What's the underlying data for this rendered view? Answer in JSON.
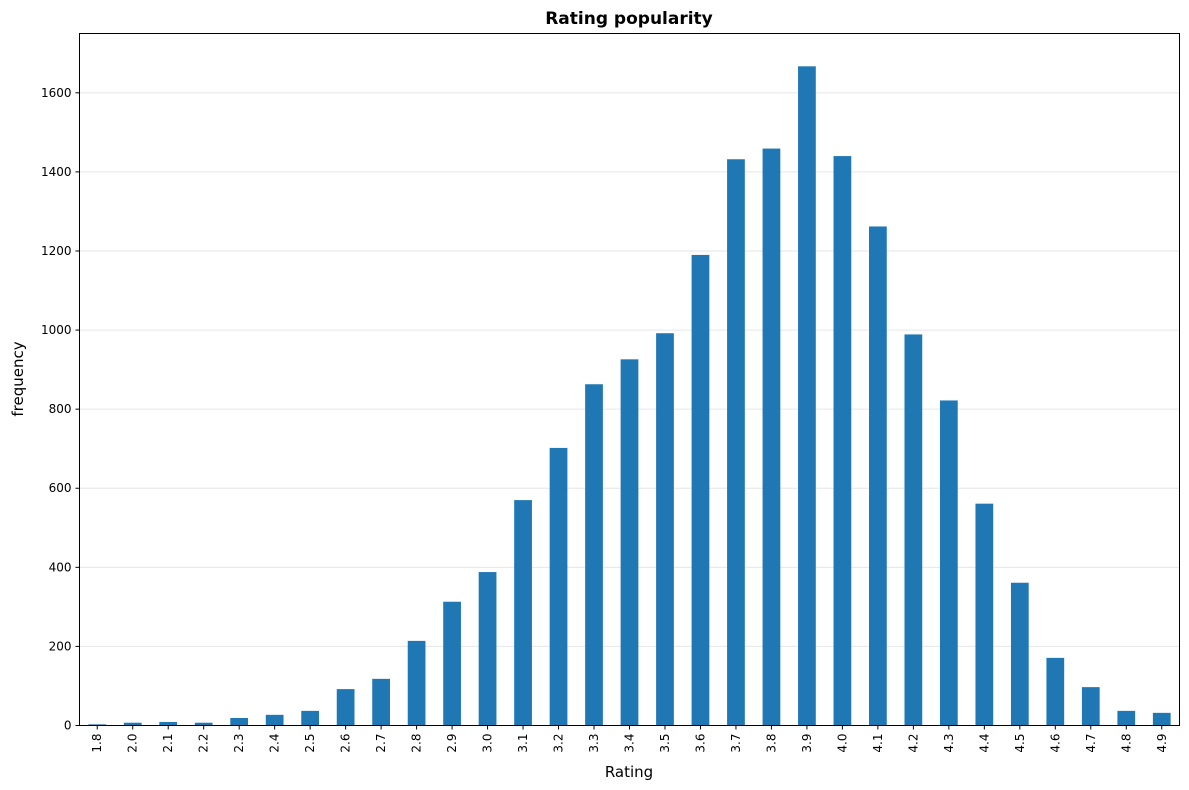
{
  "chart_data": {
    "type": "bar",
    "title": "Rating popularity",
    "xlabel": "Rating",
    "ylabel": "frequency",
    "categories": [
      "1.8",
      "2.0",
      "2.1",
      "2.2",
      "2.3",
      "2.4",
      "2.5",
      "2.6",
      "2.7",
      "2.8",
      "2.9",
      "3.0",
      "3.1",
      "3.2",
      "3.3",
      "3.4",
      "3.5",
      "3.6",
      "3.7",
      "3.8",
      "3.9",
      "4.0",
      "4.1",
      "4.2",
      "4.3",
      "4.4",
      "4.5",
      "4.6",
      "4.7",
      "4.8",
      "4.9"
    ],
    "values": [
      3,
      7,
      9,
      7,
      19,
      27,
      37,
      92,
      118,
      214,
      313,
      388,
      570,
      702,
      863,
      926,
      992,
      1190,
      1432,
      1459,
      1667,
      1440,
      1262,
      989,
      822,
      561,
      361,
      171,
      97,
      37,
      32
    ],
    "ylim": [
      0,
      1750
    ],
    "yticks": [
      0,
      200,
      400,
      600,
      800,
      1000,
      1200,
      1400,
      1600
    ],
    "grid": "horizontal",
    "bar_color": "#1f77b4"
  }
}
